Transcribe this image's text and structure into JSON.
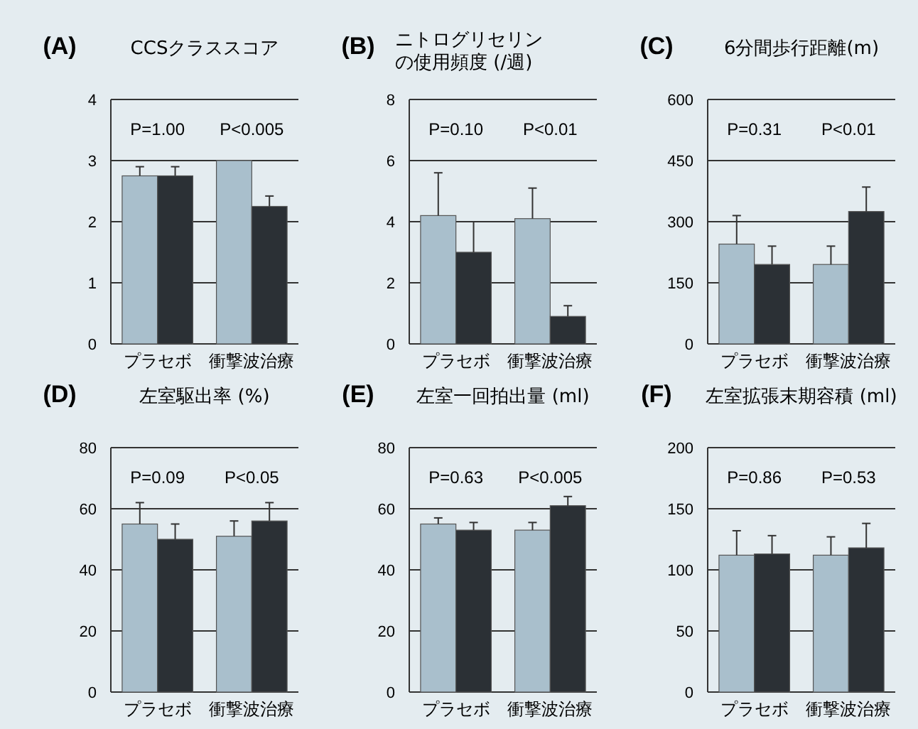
{
  "chart_data": [
    {
      "type": "bar",
      "title": "(A)",
      "subtitle": "CCSクラススコア",
      "categories": [
        "プラセボ",
        "衝撃波治療"
      ],
      "ylim": [
        0,
        4
      ],
      "yticks": [
        0,
        1,
        2,
        3,
        4
      ],
      "grid": "y",
      "annotations": [
        "P=1.00",
        "P<0.005"
      ],
      "series": [
        {
          "color": "#a9bfcc",
          "values": [
            2.75,
            3.0
          ],
          "errors": [
            [
              2.75,
              2.9
            ],
            null
          ]
        },
        {
          "color": "#2b3035",
          "values": [
            2.75,
            2.25
          ],
          "errors": [
            [
              2.75,
              2.9
            ],
            [
              2.25,
              2.42
            ]
          ]
        }
      ]
    },
    {
      "type": "bar",
      "title": "(B)",
      "subtitle": "ニトログリセリンの使用頻度 (/週)",
      "categories": [
        "プラセボ",
        "衝撃波治療"
      ],
      "ylim": [
        0,
        8
      ],
      "yticks": [
        0,
        2,
        4,
        6,
        8
      ],
      "grid": "y",
      "annotations": [
        "P=0.10",
        "P<0.01"
      ],
      "series": [
        {
          "color": "#a9bfcc",
          "values": [
            4.2,
            4.1
          ],
          "errors": [
            [
              4.2,
              5.6
            ],
            [
              4.1,
              5.1
            ]
          ]
        },
        {
          "color": "#2b3035",
          "values": [
            3.0,
            0.9
          ],
          "errors": [
            [
              3.0,
              4.0
            ],
            [
              0.9,
              1.25
            ]
          ]
        }
      ]
    },
    {
      "type": "bar",
      "title": "(C)",
      "subtitle": "6分間歩行距離(m)",
      "categories": [
        "プラセボ",
        "衝撃波治療"
      ],
      "ylim": [
        0,
        600
      ],
      "yticks": [
        0,
        150,
        300,
        450,
        600
      ],
      "grid": "y",
      "annotations": [
        "P=0.31",
        "P<0.01"
      ],
      "series": [
        {
          "color": "#a9bfcc",
          "values": [
            245,
            195
          ],
          "errors": [
            [
              245,
              315
            ],
            [
              195,
              240
            ]
          ]
        },
        {
          "color": "#2b3035",
          "values": [
            195,
            325
          ],
          "errors": [
            [
              195,
              240
            ],
            [
              325,
              385
            ]
          ]
        }
      ]
    },
    {
      "type": "bar",
      "title": "(D)",
      "subtitle": "左室駆出率 (%)",
      "categories": [
        "プラセボ",
        "衝撃波治療"
      ],
      "ylim": [
        0,
        80
      ],
      "yticks": [
        0,
        20,
        40,
        60,
        80
      ],
      "grid": "y",
      "annotations": [
        "P=0.09",
        "P<0.05"
      ],
      "series": [
        {
          "color": "#a9bfcc",
          "values": [
            55,
            51
          ],
          "errors": [
            [
              55,
              62
            ],
            [
              51,
              56
            ]
          ]
        },
        {
          "color": "#2b3035",
          "values": [
            50,
            56
          ],
          "errors": [
            [
              50,
              55
            ],
            [
              56,
              62
            ]
          ]
        }
      ]
    },
    {
      "type": "bar",
      "title": "(E)",
      "subtitle": "左室一回拍出量 (ml)",
      "categories": [
        "プラセボ",
        "衝撃波治療"
      ],
      "ylim": [
        0,
        80
      ],
      "yticks": [
        0,
        20,
        40,
        60,
        80
      ],
      "grid": "y",
      "annotations": [
        "P=0.63",
        "P<0.005"
      ],
      "series": [
        {
          "color": "#a9bfcc",
          "values": [
            55,
            53
          ],
          "errors": [
            [
              55,
              57
            ],
            [
              53,
              55.5
            ]
          ]
        },
        {
          "color": "#2b3035",
          "values": [
            53,
            61
          ],
          "errors": [
            [
              53,
              55.5
            ],
            [
              61,
              64
            ]
          ]
        }
      ]
    },
    {
      "type": "bar",
      "title": "(F)",
      "subtitle": "左室拡張末期容積 (ml)",
      "categories": [
        "プラセボ",
        "衝撃波治療"
      ],
      "ylim": [
        0,
        200
      ],
      "yticks": [
        0,
        50,
        100,
        150,
        200
      ],
      "grid": "y",
      "annotations": [
        "P=0.86",
        "P=0.53"
      ],
      "series": [
        {
          "color": "#a9bfcc",
          "values": [
            112,
            112
          ],
          "errors": [
            [
              112,
              132
            ],
            [
              112,
              127
            ]
          ]
        },
        {
          "color": "#2b3035",
          "values": [
            113,
            118
          ],
          "errors": [
            [
              113,
              128
            ],
            [
              118,
              138
            ]
          ]
        }
      ]
    }
  ]
}
